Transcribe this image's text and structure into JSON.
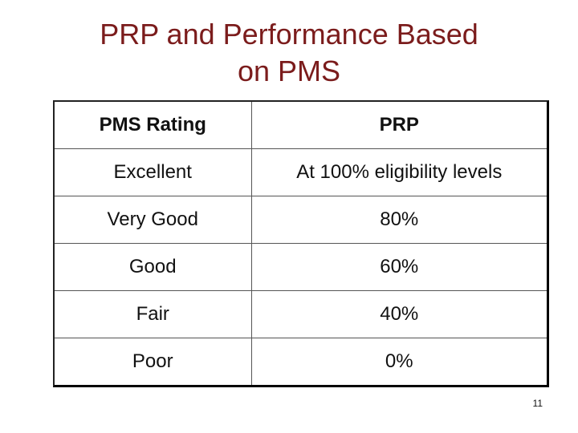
{
  "title": {
    "line1": "PRP and Performance Based",
    "line2": "on PMS"
  },
  "table": {
    "headers": [
      "PMS Rating",
      "PRP"
    ],
    "rows": [
      [
        "Excellent",
        "At 100% eligibility levels"
      ],
      [
        "Very Good",
        "80%"
      ],
      [
        "Good",
        "60%"
      ],
      [
        "Fair",
        "40%"
      ],
      [
        "Poor",
        "0%"
      ]
    ]
  },
  "page_number": "11",
  "colors": {
    "title": "#7b1c1c"
  }
}
